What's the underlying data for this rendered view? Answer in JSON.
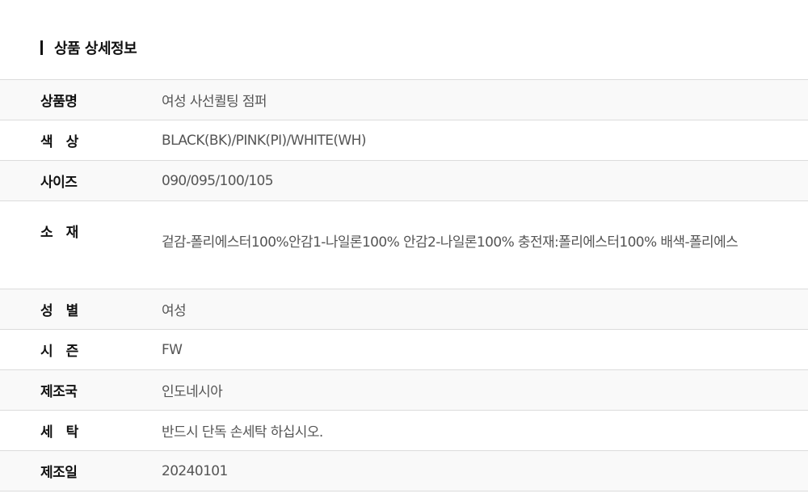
{
  "section_title": "상품 상세정보",
  "rows": [
    {
      "label": "상품명",
      "value": "여성 사선퀼팅 점퍼"
    },
    {
      "label": "색　상",
      "value": "BLACK(BK)/PINK(PI)/WHITE(WH)"
    },
    {
      "label": "사이즈",
      "value": "090/095/100/105"
    },
    {
      "label": "소　재",
      "value": "겉감-폴리에스터100%안감1-나일론100% 안감2-나일론100%  충전재:폴리에스터100% 배색-폴리에스"
    },
    {
      "label": "성　별",
      "value": "여성"
    },
    {
      "label": "시　즌",
      "value": "FW"
    },
    {
      "label": "제조국",
      "value": "인도네시아"
    },
    {
      "label": "세　탁",
      "value": "반드시 단독 손세탁 하십시오."
    },
    {
      "label": "제조일",
      "value": "20240101"
    }
  ]
}
